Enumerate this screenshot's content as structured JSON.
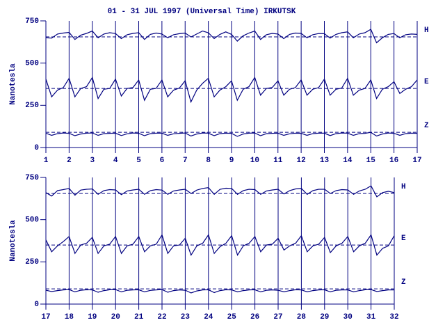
{
  "chart_data": [
    {
      "type": "line",
      "title": "01 - 31 JUL 1997 (Universal Time) IRKUTSK",
      "ylabel": "Nanotesla",
      "xlim": [
        1,
        17
      ],
      "xticks": [
        1,
        2,
        3,
        4,
        5,
        6,
        7,
        8,
        9,
        10,
        11,
        12,
        13,
        14,
        15,
        16,
        17
      ],
      "ylim": [
        0,
        750
      ],
      "yticks": [
        0,
        250,
        500,
        750
      ],
      "grid": true,
      "color": "#000080",
      "x": [
        1,
        1.25,
        1.5,
        1.75,
        2,
        2.25,
        2.5,
        2.75,
        3,
        3.25,
        3.5,
        3.75,
        4,
        4.25,
        4.5,
        4.75,
        5,
        5.25,
        5.5,
        5.75,
        6,
        6.25,
        6.5,
        6.75,
        7,
        7.25,
        7.5,
        7.75,
        8,
        8.25,
        8.5,
        8.75,
        9,
        9.25,
        9.5,
        9.75,
        10,
        10.25,
        10.5,
        10.75,
        11,
        11.25,
        11.5,
        11.75,
        12,
        12.25,
        12.5,
        12.75,
        13,
        13.25,
        13.5,
        13.75,
        14,
        14.25,
        14.5,
        14.75,
        15,
        15.25,
        15.5,
        15.75,
        16,
        16.25,
        16.5,
        16.75,
        17
      ],
      "series": [
        {
          "name": "H",
          "baseline": 655,
          "values": [
            650,
            648,
            672,
            678,
            682,
            640,
            665,
            676,
            690,
            650,
            672,
            680,
            675,
            645,
            668,
            676,
            680,
            640,
            670,
            678,
            672,
            650,
            668,
            674,
            678,
            655,
            672,
            690,
            680,
            645,
            670,
            685,
            670,
            630,
            662,
            678,
            690,
            640,
            668,
            676,
            672,
            645,
            670,
            678,
            676,
            650,
            668,
            675,
            674,
            648,
            670,
            680,
            685,
            650,
            672,
            680,
            700,
            620,
            650,
            670,
            675,
            650,
            668,
            672,
            670
          ]
        },
        {
          "name": "E",
          "baseline": 350,
          "values": [
            405,
            300,
            340,
            355,
            410,
            300,
            350,
            360,
            415,
            290,
            345,
            350,
            405,
            305,
            350,
            355,
            400,
            280,
            345,
            350,
            400,
            300,
            340,
            352,
            395,
            270,
            340,
            380,
            410,
            300,
            340,
            360,
            395,
            280,
            345,
            360,
            415,
            310,
            350,
            355,
            395,
            310,
            345,
            355,
            400,
            310,
            345,
            355,
            405,
            310,
            345,
            352,
            410,
            310,
            340,
            350,
            400,
            290,
            345,
            360,
            390,
            320,
            345,
            360,
            400
          ]
        },
        {
          "name": "Z",
          "baseline": 90,
          "values": [
            85,
            72,
            82,
            86,
            84,
            70,
            80,
            85,
            86,
            72,
            82,
            84,
            85,
            71,
            81,
            86,
            84,
            70,
            82,
            85,
            85,
            72,
            81,
            84,
            86,
            68,
            80,
            86,
            85,
            70,
            82,
            85,
            84,
            66,
            80,
            85,
            86,
            70,
            82,
            84,
            85,
            72,
            81,
            85,
            84,
            72,
            82,
            85,
            85,
            71,
            82,
            86,
            85,
            72,
            82,
            84,
            90,
            68,
            80,
            86,
            84,
            72,
            82,
            85,
            84
          ]
        }
      ]
    },
    {
      "type": "line",
      "ylabel": "Nanotesla",
      "xlim": [
        17,
        32
      ],
      "xticks": [
        17,
        18,
        19,
        20,
        21,
        22,
        23,
        24,
        25,
        26,
        27,
        28,
        29,
        30,
        31,
        32
      ],
      "ylim": [
        0,
        750
      ],
      "yticks": [
        0,
        250,
        500,
        750
      ],
      "grid": true,
      "color": "#000080",
      "x": [
        17,
        17.25,
        17.5,
        17.75,
        18,
        18.25,
        18.5,
        18.75,
        19,
        19.25,
        19.5,
        19.75,
        20,
        20.25,
        20.5,
        20.75,
        21,
        21.25,
        21.5,
        21.75,
        22,
        22.25,
        22.5,
        22.75,
        23,
        23.25,
        23.5,
        23.75,
        24,
        24.25,
        24.5,
        24.75,
        25,
        25.25,
        25.5,
        25.75,
        26,
        26.25,
        26.5,
        26.75,
        27,
        27.25,
        27.5,
        27.75,
        28,
        28.25,
        28.5,
        28.75,
        29,
        29.25,
        29.5,
        29.75,
        30,
        30.25,
        30.5,
        30.75,
        31,
        31.25,
        31.5,
        31.75,
        32
      ],
      "series": [
        {
          "name": "H",
          "baseline": 655,
          "values": [
            660,
            640,
            672,
            678,
            685,
            645,
            675,
            680,
            682,
            650,
            672,
            678,
            676,
            648,
            670,
            676,
            680,
            650,
            672,
            678,
            675,
            650,
            670,
            676,
            680,
            655,
            675,
            685,
            690,
            650,
            680,
            686,
            685,
            650,
            672,
            680,
            678,
            650,
            670,
            676,
            680,
            652,
            672,
            682,
            685,
            650,
            672,
            680,
            680,
            655,
            672,
            678,
            676,
            650,
            670,
            680,
            700,
            635,
            660,
            668,
            660
          ]
        },
        {
          "name": "E",
          "baseline": 350,
          "values": [
            380,
            310,
            345,
            370,
            400,
            300,
            350,
            360,
            395,
            300,
            345,
            355,
            400,
            300,
            345,
            355,
            400,
            310,
            345,
            355,
            410,
            300,
            345,
            350,
            390,
            290,
            345,
            360,
            410,
            300,
            340,
            360,
            405,
            290,
            345,
            360,
            400,
            310,
            350,
            355,
            390,
            320,
            345,
            360,
            405,
            310,
            345,
            355,
            395,
            305,
            345,
            360,
            400,
            310,
            345,
            360,
            410,
            290,
            330,
            345,
            405
          ]
        },
        {
          "name": "Z",
          "baseline": 90,
          "values": [
            82,
            74,
            80,
            84,
            86,
            72,
            82,
            85,
            84,
            70,
            80,
            85,
            86,
            72,
            82,
            84,
            85,
            72,
            81,
            84,
            86,
            70,
            80,
            84,
            82,
            66,
            78,
            84,
            85,
            68,
            80,
            85,
            84,
            72,
            80,
            84,
            85,
            72,
            82,
            84,
            82,
            72,
            80,
            85,
            84,
            72,
            80,
            84,
            85,
            72,
            82,
            84,
            84,
            72,
            80,
            85,
            86,
            74,
            80,
            84,
            84
          ]
        }
      ]
    }
  ]
}
